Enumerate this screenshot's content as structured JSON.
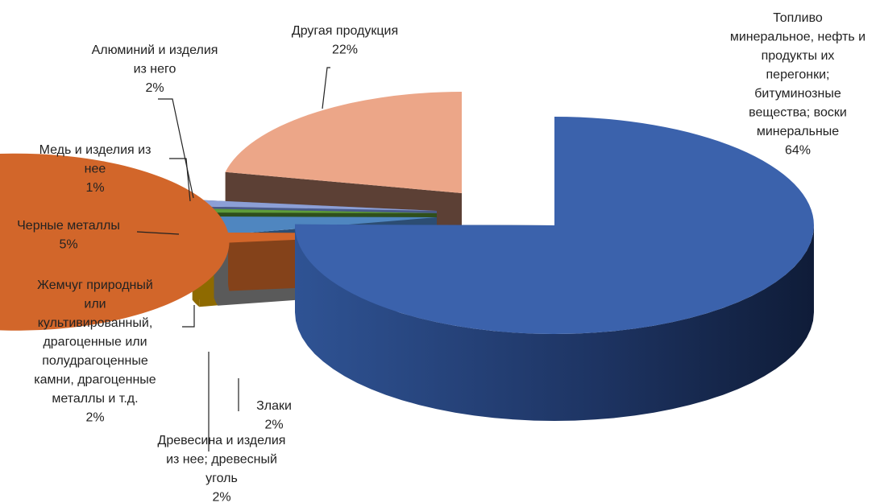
{
  "chart_data": {
    "type": "pie",
    "style": "3d-exploded",
    "legend": "none",
    "slices": [
      {
        "id": "fuel",
        "label_lines": [
          "Топливо",
          "минеральное, нефть и",
          "продукты их",
          "перегонки;",
          "битуминозные",
          "вещества; воски",
          "минеральные"
        ],
        "value_label": "64%",
        "value": 64,
        "color": "#3b62ac"
      },
      {
        "id": "grain",
        "label_lines": [
          "Злаки"
        ],
        "value_label": "2%",
        "value": 2,
        "color": "#d2662a"
      },
      {
        "id": "wood",
        "label_lines": [
          "Древесина и изделия",
          "из нее; древесный",
          "уголь"
        ],
        "value_label": "2%",
        "value": 2,
        "color": "#8e8e8e"
      },
      {
        "id": "pearls",
        "label_lines": [
          "Жемчуг природный",
          "или",
          "культивированный,",
          "драгоценные или",
          "полудрагоценные",
          "камни, драгоценные",
          "металлы и т.д."
        ],
        "value_label": "2%",
        "value": 2,
        "color": "#e2a900"
      },
      {
        "id": "ferrous",
        "label_lines": [
          "Черные металлы"
        ],
        "value_label": "5%",
        "value": 5,
        "color": "#4f86c0"
      },
      {
        "id": "copper",
        "label_lines": [
          "Медь и изделия из",
          "нее"
        ],
        "value_label": "1%",
        "value": 1,
        "color": "#5e9c3a"
      },
      {
        "id": "aluminium",
        "label_lines": [
          "Алюминий и изделия",
          "из него"
        ],
        "value_label": "2%",
        "value": 2,
        "color": "#8c9fd6"
      },
      {
        "id": "other",
        "label_lines": [
          "Другая продукция"
        ],
        "value_label": "22%",
        "value": 22,
        "color": "#eca688"
      }
    ]
  }
}
